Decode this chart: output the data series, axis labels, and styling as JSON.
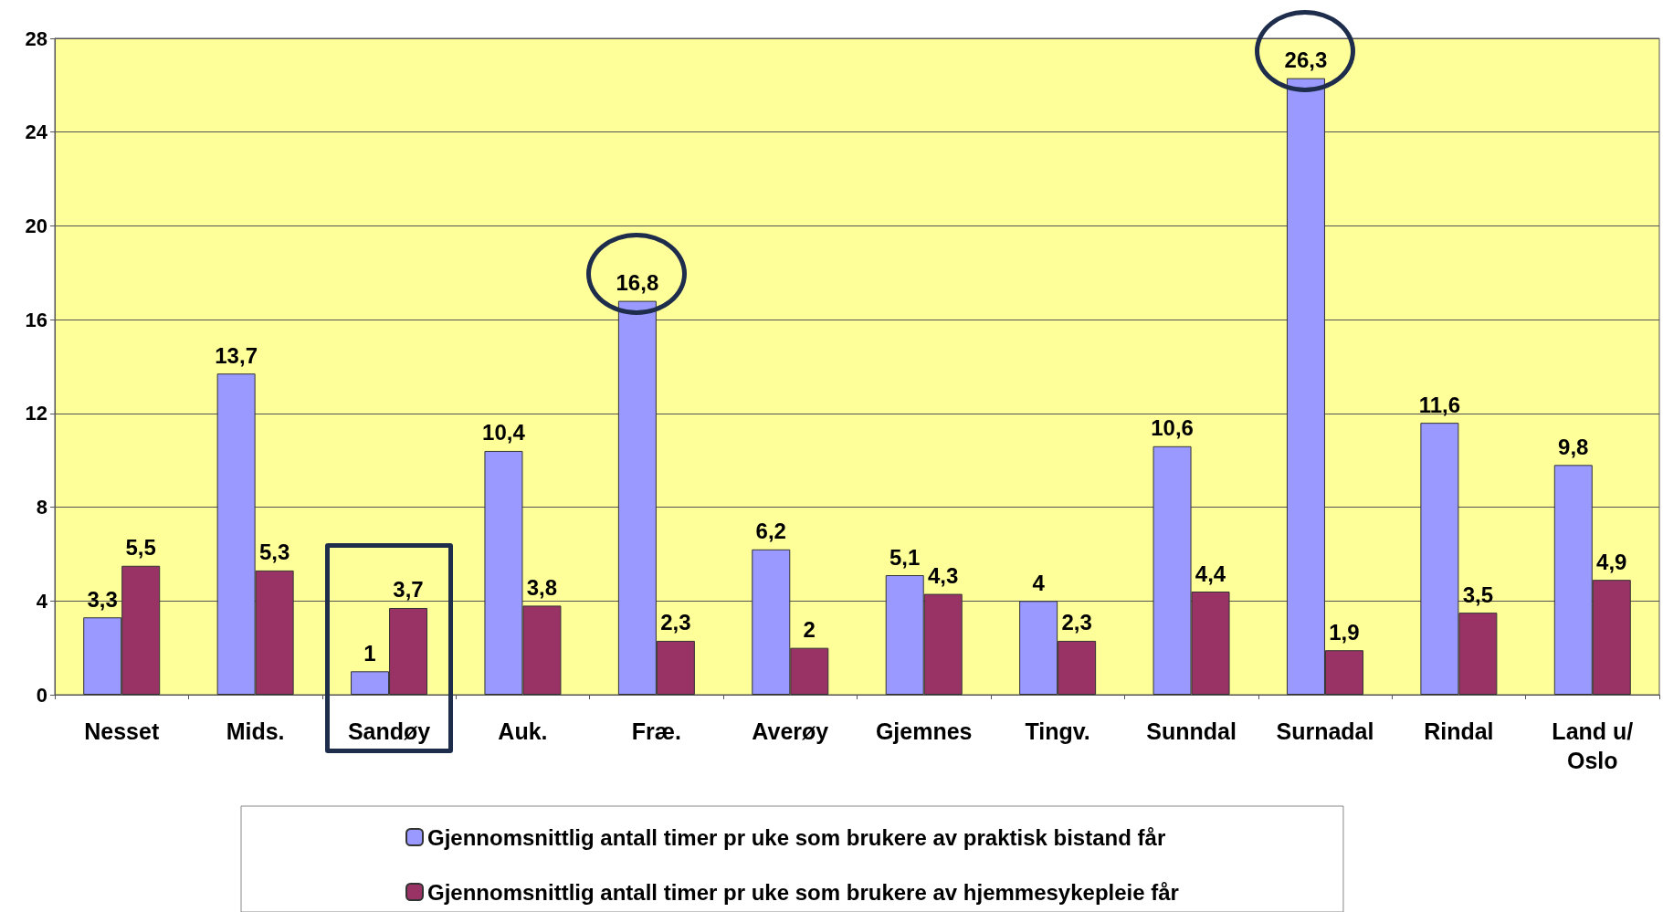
{
  "chart_data": {
    "type": "bar",
    "categories": [
      "Nesset",
      "Mids.",
      "Sandøy",
      "Auk.",
      "Fræ.",
      "Averøy",
      "Gjemnes",
      "Tingv.",
      "Sunndal",
      "Surnadal",
      "Rindal",
      "Land u/\nOslo"
    ],
    "series": [
      {
        "name": "Gjennomsnittlig antall timer pr uke som brukere av praktisk bistand får",
        "color": "#9999ff",
        "values": [
          3.3,
          13.7,
          1,
          10.4,
          16.8,
          6.2,
          5.1,
          4,
          10.6,
          26.3,
          11.6,
          9.8
        ],
        "value_labels": [
          "3,3",
          "13,7",
          "1",
          "10,4",
          "16,8",
          "6,2",
          "5,1",
          "4",
          "10,6",
          "26,3",
          "11,6",
          "9,8"
        ]
      },
      {
        "name": "Gjennomsnittlig antall timer pr uke som brukere av hjemmesykepleie får",
        "color": "#993366",
        "values": [
          5.5,
          5.3,
          3.7,
          3.8,
          2.3,
          2,
          4.3,
          2.3,
          4.4,
          1.9,
          3.5,
          4.9
        ],
        "value_labels": [
          "5,5",
          "5,3",
          "3,7",
          "3,8",
          "2,3",
          "2",
          "4,3",
          "2,3",
          "4,4",
          "1,9",
          "3,5",
          "4,9"
        ]
      }
    ],
    "ylim": [
      0,
      28
    ],
    "yticks": [
      0,
      4,
      8,
      12,
      16,
      20,
      24,
      28
    ],
    "grid": "y",
    "legend": "bottom"
  }
}
